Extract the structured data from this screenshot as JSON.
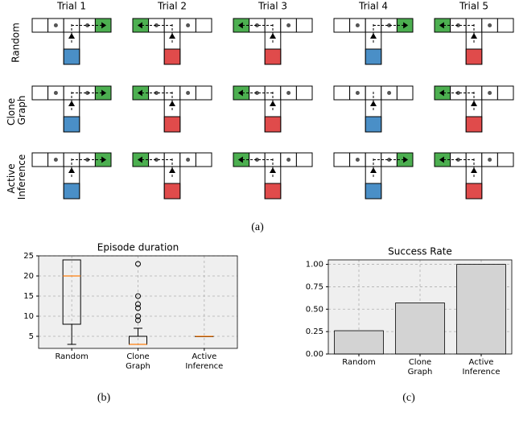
{
  "figure_a": {
    "column_titles": [
      "Trial 1",
      "Trial 2",
      "Trial 3",
      "Trial 4",
      "Trial 5"
    ],
    "row_labels": [
      "Random",
      "Clone Graph",
      "Active Inference"
    ],
    "caption": "(a)"
  },
  "chart_data": [
    {
      "type": "box",
      "title": "Episode duration",
      "caption": "(b)",
      "categories": [
        "Random",
        "Clone Graph",
        "Active Inference"
      ],
      "boxes": [
        {
          "whislo": 3,
          "q1": 8,
          "med": 20,
          "q3": 24,
          "whishi": 24,
          "fliers": []
        },
        {
          "whislo": 3,
          "q1": 3,
          "med": 3,
          "q3": 5,
          "whishi": 7,
          "fliers": [
            9,
            10,
            12,
            13,
            15,
            23
          ]
        },
        {
          "whislo": 5,
          "q1": 5,
          "med": 5,
          "q3": 5,
          "whishi": 5,
          "fliers": []
        }
      ],
      "median_color": "#ff7f0e",
      "ylim": [
        2,
        25
      ],
      "yticks": [
        5,
        10,
        15,
        20,
        25
      ],
      "grid": true
    },
    {
      "type": "bar",
      "title": "Success Rate",
      "caption": "(c)",
      "categories": [
        "Random",
        "Clone Graph",
        "Active Inference"
      ],
      "values": [
        0.26,
        0.57,
        1.0
      ],
      "color": "#d3d3d3",
      "ylim": [
        0,
        1.05
      ],
      "yticks": [
        {
          "value": 0,
          "label": "0.00"
        },
        {
          "value": 0.25,
          "label": "0.25"
        },
        {
          "value": 0.5,
          "label": "0.50"
        },
        {
          "value": 0.75,
          "label": "0.75"
        },
        {
          "value": 1,
          "label": "1.00"
        }
      ],
      "grid": true
    }
  ]
}
